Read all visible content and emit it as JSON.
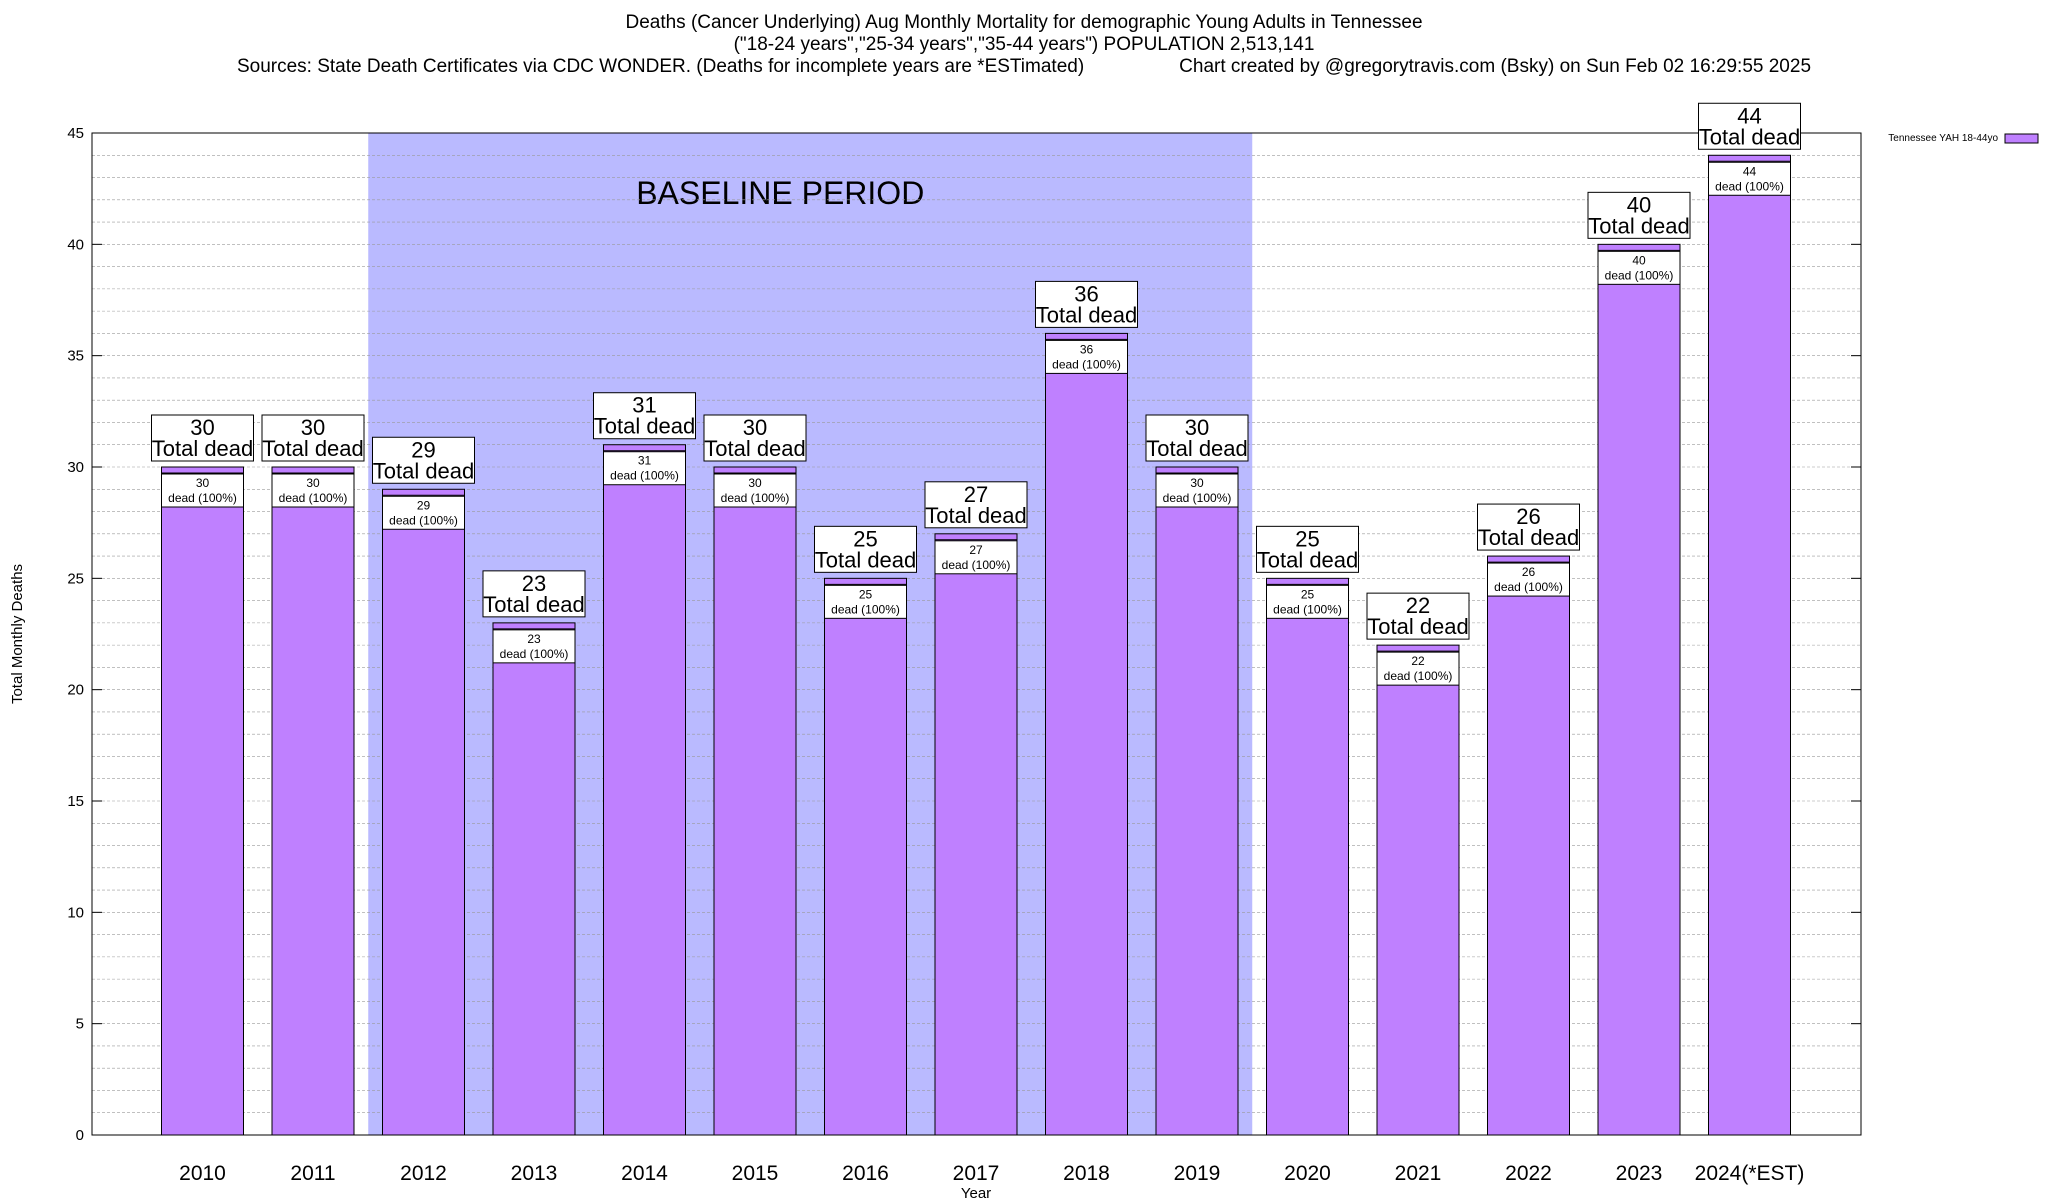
{
  "header": {
    "title": "Deaths (Cancer Underlying) Aug Monthly Mortality for demographic Young Adults in Tennessee",
    "subtitle": "(\"18-24 years\",\"25-34 years\",\"35-44 years\") POPULATION 2,513,141",
    "sources": "Sources: State Death Certificates via CDC WONDER. (Deaths for incomplete years are *ESTimated)",
    "credit": "Chart created by @gregorytravis.com (Bsky) on Sun Feb 02 16:29:55 2025"
  },
  "chart_data": {
    "type": "bar",
    "categories": [
      "2010",
      "2011",
      "2012",
      "2013",
      "2014",
      "2015",
      "2016",
      "2017",
      "2018",
      "2019",
      "2020",
      "2021",
      "2022",
      "2023",
      "2024(*EST)"
    ],
    "series": [
      {
        "name": "Tennessee YAH 18-44yo",
        "values": [
          30,
          30,
          29,
          23,
          31,
          30,
          25,
          27,
          36,
          30,
          25,
          22,
          26,
          40,
          44
        ],
        "color": "#bf80ff"
      }
    ],
    "xlabel": "Year",
    "ylabel": "Total Monthly Deaths",
    "ylim": [
      0,
      45
    ],
    "yticks": [
      0,
      5,
      10,
      15,
      20,
      25,
      30,
      35,
      40,
      45
    ],
    "grid": true,
    "legend_position": "top-right",
    "baseline": {
      "label": "BASELINE PERIOD",
      "from": "2012",
      "to": "2019",
      "color": "#babaff"
    },
    "top_label_suffix": "Total dead",
    "inner_label_suffix": "dead (100%)"
  }
}
